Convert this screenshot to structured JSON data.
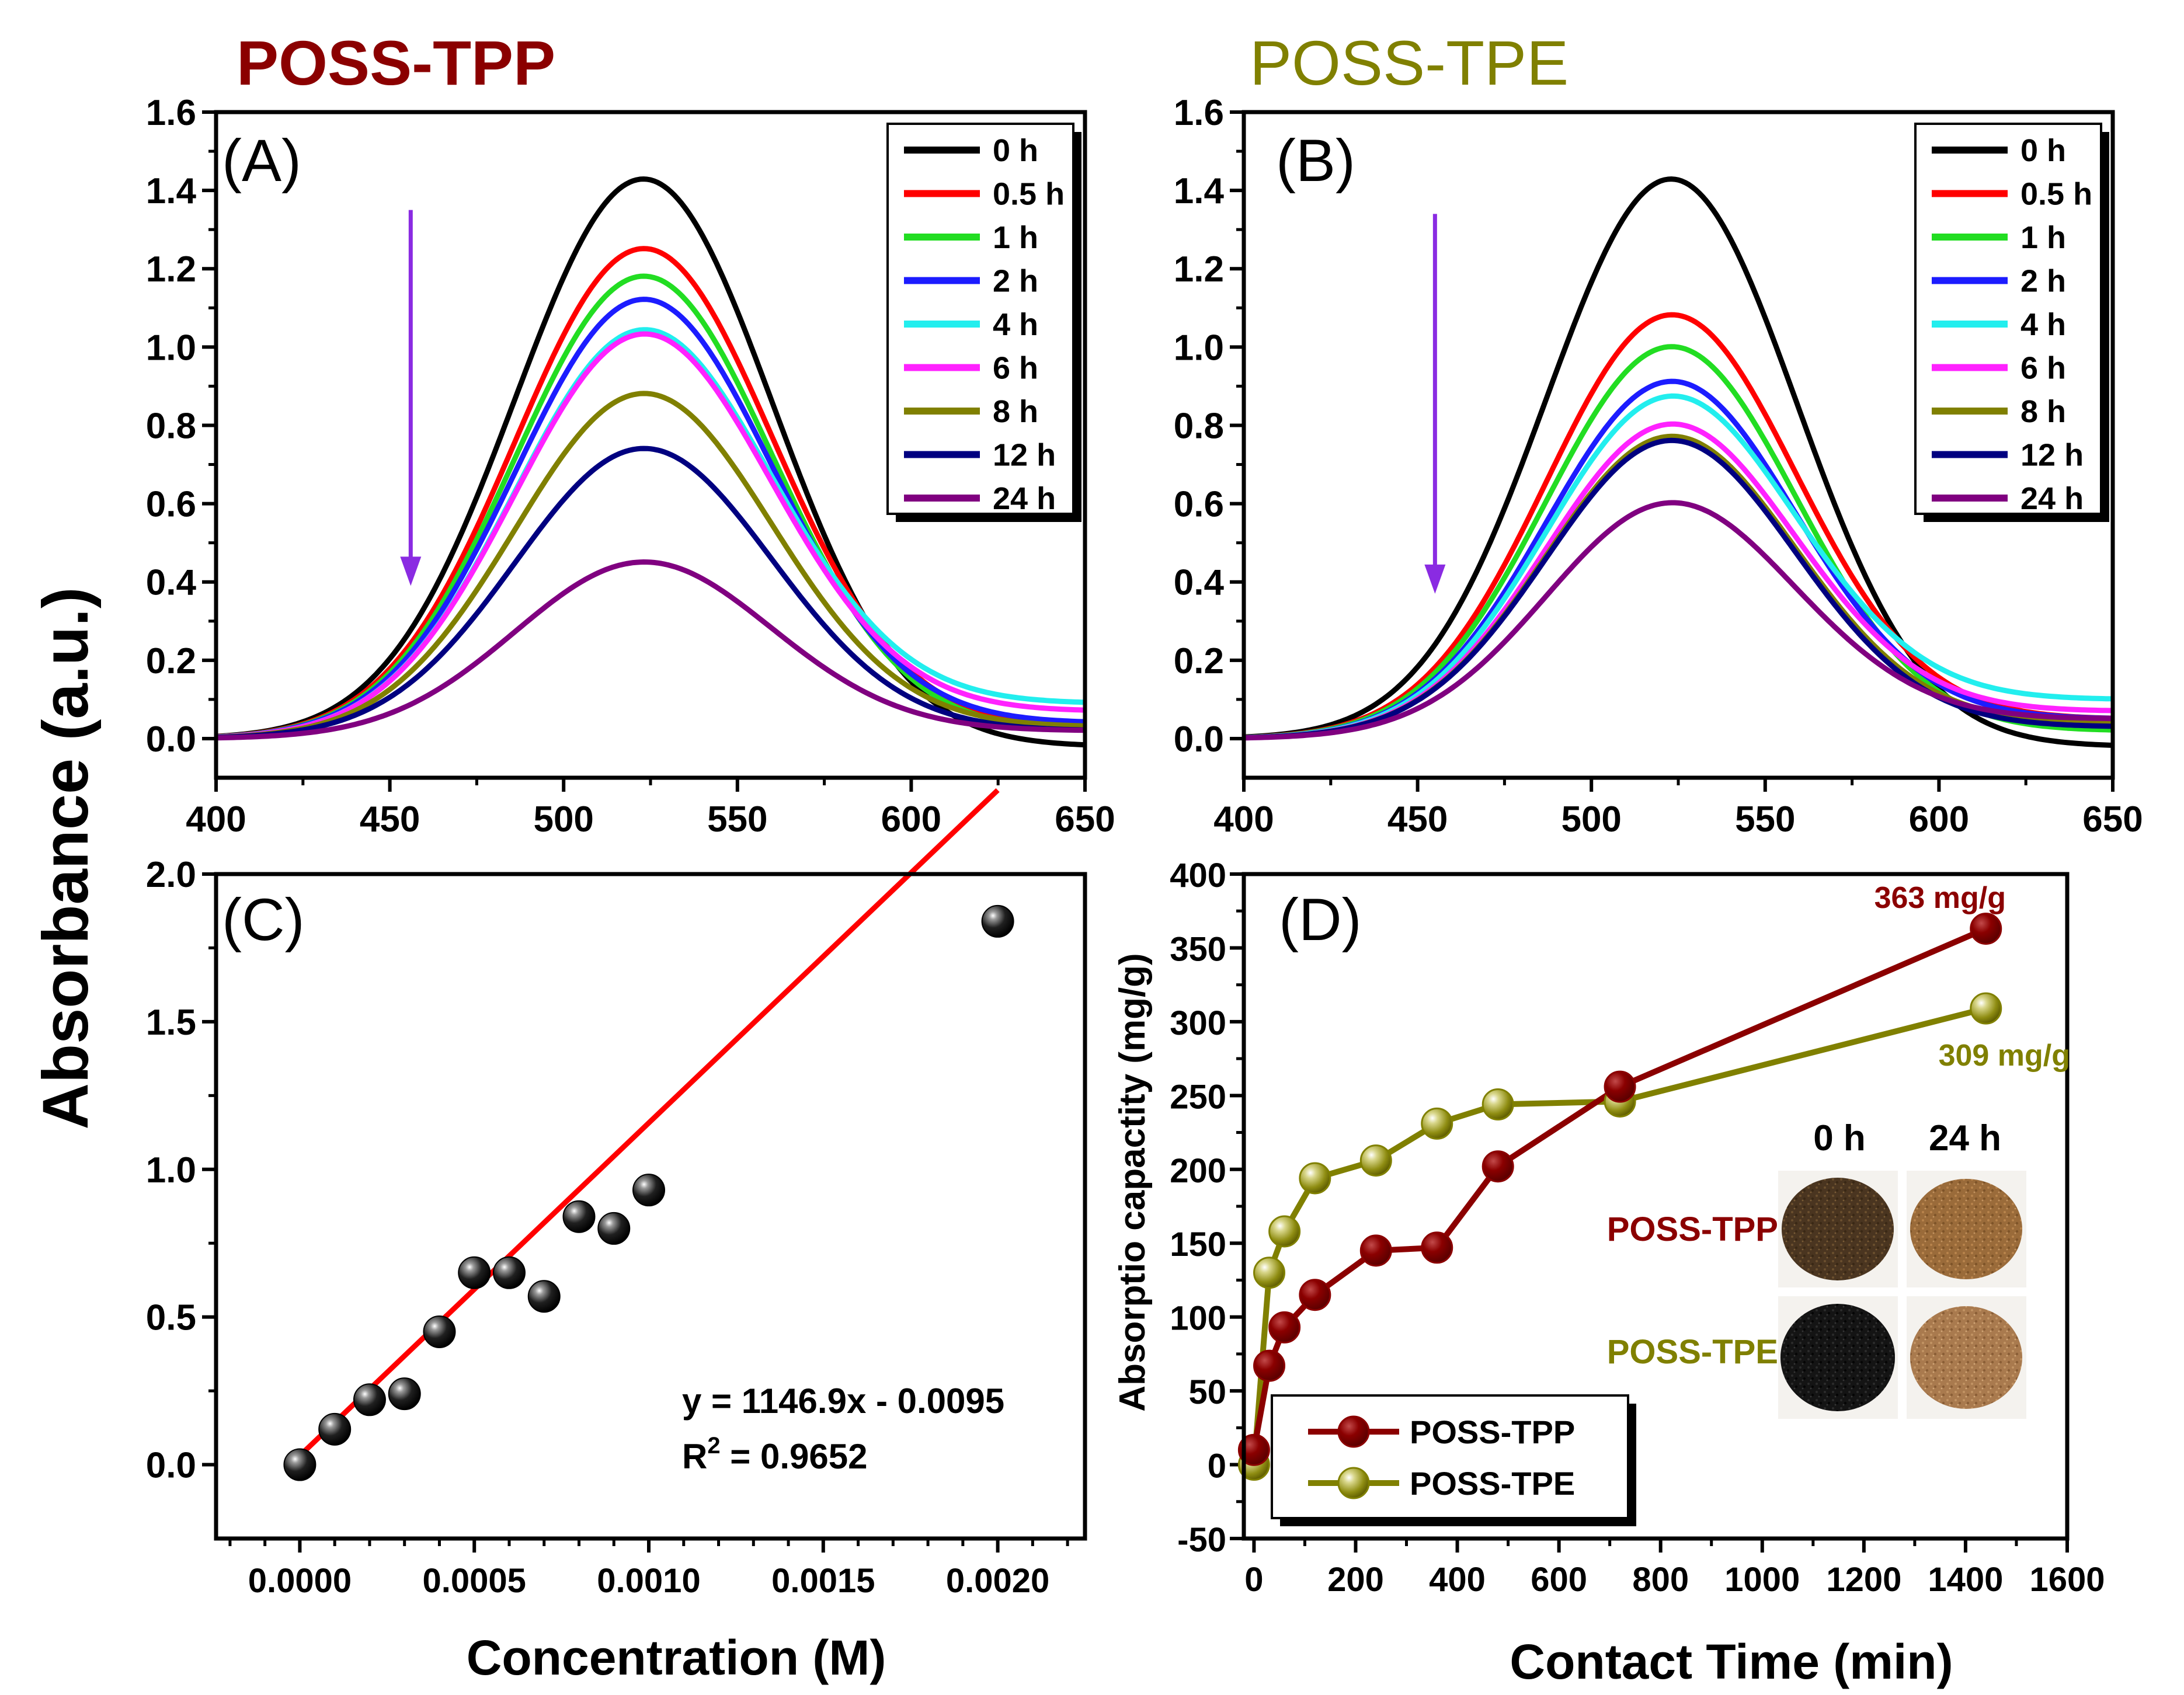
{
  "figure": {
    "shared_ylabel": "Absorbance (a.u.)",
    "heading_left": "POSS-TPP",
    "heading_right": "POSS-TPE",
    "heading_left_color": "#8b0000",
    "heading_right_color": "#808000"
  },
  "chart_data": [
    {
      "id": "A",
      "type": "line",
      "panel_label": "(A)",
      "xlabel": "",
      "ylabel": "",
      "xlim": [
        400,
        650
      ],
      "ylim": [
        -0.1,
        1.6
      ],
      "xticks": [
        "400",
        "450",
        "500",
        "550",
        "600",
        "650"
      ],
      "yticks": [
        "0.0",
        "0.2",
        "0.4",
        "0.6",
        "0.8",
        "1.0",
        "1.2",
        "1.4",
        "1.6"
      ],
      "peak_x": 523,
      "sigma": 37,
      "arrow": {
        "x": 456,
        "y_from": 1.35,
        "y_to": 0.39,
        "color": "#8a2be2"
      },
      "legend_position": "top-right",
      "series": [
        {
          "name": "0 h",
          "color": "#000000",
          "peak": 1.43,
          "tail_650": -0.02
        },
        {
          "name": "0.5 h",
          "color": "#ff0000",
          "peak": 1.25,
          "tail_650": 0.03
        },
        {
          "name": "1 h",
          "color": "#22dd22",
          "peak": 1.18,
          "tail_650": 0.02
        },
        {
          "name": "2 h",
          "color": "#1c1cff",
          "peak": 1.12,
          "tail_650": 0.04
        },
        {
          "name": "4 h",
          "color": "#22eeee",
          "peak": 1.04,
          "tail_650": 0.09
        },
        {
          "name": "6 h",
          "color": "#ff22ff",
          "peak": 1.03,
          "tail_650": 0.07
        },
        {
          "name": "8 h",
          "color": "#808000",
          "peak": 0.88,
          "tail_650": 0.03
        },
        {
          "name": "12 h",
          "color": "#000080",
          "peak": 0.74,
          "tail_650": 0.02
        },
        {
          "name": "24 h",
          "color": "#800080",
          "peak": 0.45,
          "tail_650": 0.02
        }
      ]
    },
    {
      "id": "B",
      "type": "line",
      "panel_label": "(B)",
      "xlabel": "",
      "ylabel": "",
      "xlim": [
        400,
        650
      ],
      "ylim": [
        -0.1,
        1.6
      ],
      "xticks": [
        "400",
        "450",
        "500",
        "550",
        "600",
        "650"
      ],
      "yticks": [
        "0.0",
        "0.2",
        "0.4",
        "0.6",
        "0.8",
        "1.0",
        "1.2",
        "1.4",
        "1.6"
      ],
      "peak_x": 523,
      "sigma": 36,
      "arrow": {
        "x": 455,
        "y_from": 1.34,
        "y_to": 0.37,
        "color": "#8a2be2"
      },
      "legend_position": "top-right",
      "series": [
        {
          "name": "0 h",
          "color": "#000000",
          "peak": 1.43,
          "tail_650": -0.02
        },
        {
          "name": "0.5 h",
          "color": "#ff0000",
          "peak": 1.08,
          "tail_650": 0.05
        },
        {
          "name": "1 h",
          "color": "#22dd22",
          "peak": 1.0,
          "tail_650": 0.02
        },
        {
          "name": "2 h",
          "color": "#1c1cff",
          "peak": 0.91,
          "tail_650": 0.05
        },
        {
          "name": "4 h",
          "color": "#22eeee",
          "peak": 0.87,
          "tail_650": 0.1
        },
        {
          "name": "6 h",
          "color": "#ff22ff",
          "peak": 0.8,
          "tail_650": 0.07
        },
        {
          "name": "8 h",
          "color": "#808000",
          "peak": 0.77,
          "tail_650": 0.04
        },
        {
          "name": "12 h",
          "color": "#000080",
          "peak": 0.76,
          "tail_650": 0.03
        },
        {
          "name": "24 h",
          "color": "#800080",
          "peak": 0.6,
          "tail_650": 0.05
        }
      ]
    },
    {
      "id": "C",
      "type": "scatter",
      "panel_label": "(C)",
      "xlabel": "Concentration (M)",
      "ylabel": "",
      "xlim": [
        -0.00024,
        0.00225
      ],
      "ylim": [
        -0.25,
        2.0
      ],
      "xtick_values": [
        0,
        0.0005,
        0.001,
        0.0015,
        0.002
      ],
      "xticks": [
        "0.0000",
        "0.0005",
        "0.0010",
        "0.0015",
        "0.0020"
      ],
      "ytick_values": [
        0,
        0.5,
        1.0,
        1.5,
        2.0
      ],
      "yticks": [
        "0.0",
        "0.5",
        "1.0",
        "1.5",
        "2.0"
      ],
      "points": {
        "x": [
          0,
          0.0001,
          0.0002,
          0.0003,
          0.0004,
          0.0005,
          0.0006,
          0.0007,
          0.0008,
          0.0009,
          0.001,
          0.002
        ],
        "y": [
          0.0,
          0.12,
          0.22,
          0.24,
          0.45,
          0.65,
          0.65,
          0.57,
          0.84,
          0.8,
          0.93,
          1.84
        ]
      },
      "fit": {
        "slope": 1146.9,
        "intercept": -0.0095,
        "color": "#ff0000"
      },
      "equation": "y = 1146.9x - 0.0095",
      "r2_prefix": "R",
      "r2_sup": "2",
      "r2_value": " = 0.9652"
    },
    {
      "id": "D",
      "type": "line",
      "panel_label": "(D)",
      "xlabel": "Contact Time (min)",
      "ylabel": "Absorptio capactity (mg/g)",
      "xlim": [
        -20,
        1600
      ],
      "ylim": [
        -50,
        400
      ],
      "xticks": [
        "0",
        "200",
        "400",
        "600",
        "800",
        "1000",
        "1200",
        "1400",
        "1600"
      ],
      "xtick_values": [
        0,
        200,
        400,
        600,
        800,
        1000,
        1200,
        1400,
        1600
      ],
      "yticks": [
        "-50",
        "0",
        "50",
        "100",
        "150",
        "200",
        "250",
        "300",
        "350",
        "400"
      ],
      "ytick_values": [
        -50,
        0,
        50,
        100,
        150,
        200,
        250,
        300,
        350,
        400
      ],
      "series": [
        {
          "name": "POSS-TPP",
          "color": "#8b0000",
          "x": [
            0,
            30,
            60,
            120,
            240,
            360,
            480,
            720,
            1440
          ],
          "y": [
            10,
            67,
            93,
            115,
            145,
            147,
            202,
            256,
            363
          ]
        },
        {
          "name": "POSS-TPE",
          "color": "#808000",
          "x": [
            0,
            30,
            60,
            120,
            240,
            360,
            480,
            720,
            1440
          ],
          "y": [
            0,
            130,
            158,
            194,
            206,
            231,
            244,
            246,
            309
          ]
        }
      ],
      "annotations": {
        "tpp_max": "363 mg/g",
        "tpe_max": "309 mg/g"
      },
      "inset": {
        "col_0": "0 h",
        "col_24": "24 h",
        "row_tpp": "POSS-TPP",
        "row_tpe": "POSS-TPE"
      },
      "legend_position": "bottom-left"
    }
  ]
}
